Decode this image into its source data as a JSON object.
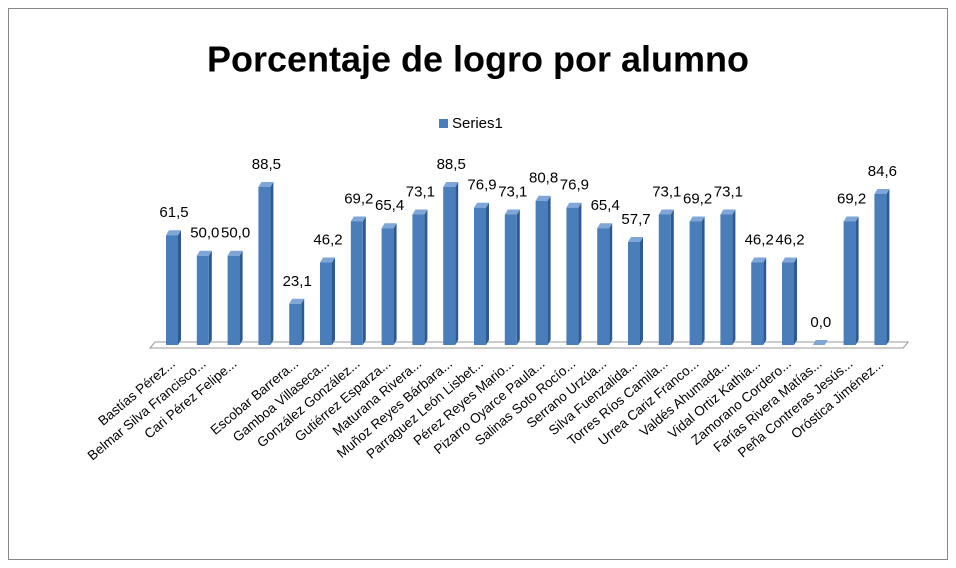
{
  "chart_data": {
    "type": "bar",
    "title": "Porcentaje de logro por alumno",
    "categories": [
      "Bastías  Pérez...",
      "Belmar Silva Francisco...",
      "Cari Pérez Felipe...",
      null,
      "Escobar Barrera...",
      "Gamboa Villaseca...",
      "González González...",
      "Gutiérrez Esparza...",
      "Maturana Rivera...",
      "Muñoz Reyes Bárbara...",
      "Parraguez León Lisbet...",
      "Pérez Reyes Mario...",
      "Pizarro Oyarce Paula...",
      "Salinas Soto Rocío...",
      "Serrano Urzúa...",
      "Silva Fuenzalida...",
      "Torres Ríos Camila...",
      "Urrea Cariz Franco...",
      "Valdés Ahumada...",
      "Vidal Ortiz Kathia...",
      "Zamorano Cordero...",
      "Farías Rivera Matías...",
      "Peña Contreras Jesús...",
      "Oróstica Jiménez..."
    ],
    "series": [
      {
        "name": "Series1",
        "color": "#4a7ebb",
        "values": [
          61.5,
          50.0,
          50.0,
          88.5,
          23.1,
          46.2,
          69.2,
          65.4,
          73.1,
          88.5,
          76.9,
          73.1,
          80.8,
          76.9,
          65.4,
          57.7,
          73.1,
          69.2,
          73.1,
          46.2,
          46.2,
          0.0,
          69.2,
          84.6
        ],
        "value_labels": [
          "61,5",
          "50,0",
          "50,0",
          "88,5",
          "23,1",
          "46,2",
          "69,2",
          "65,4",
          "73,1",
          "88,5",
          "76,9",
          "73,1",
          "80,8",
          "76,9",
          "65,4",
          "57,7",
          "73,1",
          "69,2",
          "73,1",
          "46,2",
          "46,2",
          "0,0",
          "69,2",
          "84,6"
        ]
      }
    ],
    "legend": "top"
  }
}
